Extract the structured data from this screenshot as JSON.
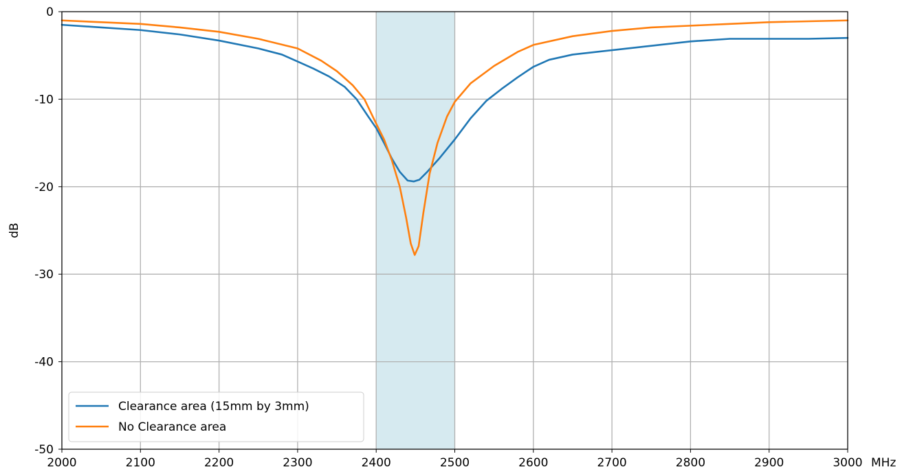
{
  "chart_data": {
    "type": "line",
    "title": "",
    "xlabel": "",
    "ylabel": "dB",
    "x_unit": "MHz",
    "xlim": [
      2000,
      3000
    ],
    "ylim": [
      -50,
      0
    ],
    "x_ticks": [
      2000,
      2100,
      2200,
      2300,
      2400,
      2500,
      2600,
      2700,
      2800,
      2900,
      3000
    ],
    "y_ticks": [
      0,
      -10,
      -20,
      -30,
      -40,
      -50
    ],
    "x_tick_labels": [
      "2000",
      "2100",
      "2200",
      "2300",
      "2400",
      "2500",
      "2600",
      "2700",
      "2800",
      "2900",
      "3000"
    ],
    "y_tick_labels": [
      "0",
      "-10",
      "-20",
      "-30",
      "-40",
      "-50"
    ],
    "grid": true,
    "legend_position": "bottom-left",
    "highlight_band": {
      "x_start": 2400,
      "x_end": 2500,
      "color": "#d6eaf0"
    },
    "series": [
      {
        "name": "Clearance area (15mm by 3mm)",
        "color": "#1f77b4",
        "points": [
          [
            2000,
            -1.5
          ],
          [
            2050,
            -1.8
          ],
          [
            2100,
            -2.1
          ],
          [
            2150,
            -2.6
          ],
          [
            2200,
            -3.3
          ],
          [
            2250,
            -4.2
          ],
          [
            2280,
            -4.9
          ],
          [
            2300,
            -5.7
          ],
          [
            2320,
            -6.5
          ],
          [
            2340,
            -7.4
          ],
          [
            2360,
            -8.6
          ],
          [
            2375,
            -10.0
          ],
          [
            2390,
            -12.0
          ],
          [
            2400,
            -13.3
          ],
          [
            2410,
            -15.0
          ],
          [
            2420,
            -16.8
          ],
          [
            2430,
            -18.3
          ],
          [
            2440,
            -19.3
          ],
          [
            2448,
            -19.4
          ],
          [
            2455,
            -19.2
          ],
          [
            2465,
            -18.3
          ],
          [
            2480,
            -16.8
          ],
          [
            2500,
            -14.6
          ],
          [
            2520,
            -12.2
          ],
          [
            2540,
            -10.2
          ],
          [
            2560,
            -8.8
          ],
          [
            2580,
            -7.5
          ],
          [
            2600,
            -6.3
          ],
          [
            2620,
            -5.5
          ],
          [
            2650,
            -4.9
          ],
          [
            2700,
            -4.4
          ],
          [
            2750,
            -3.9
          ],
          [
            2800,
            -3.4
          ],
          [
            2850,
            -3.1
          ],
          [
            2900,
            -3.1
          ],
          [
            2950,
            -3.1
          ],
          [
            3000,
            -3.0
          ]
        ]
      },
      {
        "name": "No Clearance area",
        "color": "#ff7f0e",
        "points": [
          [
            2000,
            -1.0
          ],
          [
            2050,
            -1.2
          ],
          [
            2100,
            -1.4
          ],
          [
            2150,
            -1.8
          ],
          [
            2200,
            -2.3
          ],
          [
            2250,
            -3.1
          ],
          [
            2300,
            -4.2
          ],
          [
            2330,
            -5.6
          ],
          [
            2350,
            -6.8
          ],
          [
            2370,
            -8.4
          ],
          [
            2385,
            -10.0
          ],
          [
            2400,
            -12.8
          ],
          [
            2410,
            -14.6
          ],
          [
            2420,
            -17.0
          ],
          [
            2430,
            -20.0
          ],
          [
            2438,
            -23.5
          ],
          [
            2444,
            -26.5
          ],
          [
            2449,
            -27.8
          ],
          [
            2454,
            -26.8
          ],
          [
            2460,
            -23.0
          ],
          [
            2468,
            -18.5
          ],
          [
            2478,
            -15.0
          ],
          [
            2490,
            -12.0
          ],
          [
            2500,
            -10.3
          ],
          [
            2520,
            -8.2
          ],
          [
            2550,
            -6.2
          ],
          [
            2580,
            -4.6
          ],
          [
            2600,
            -3.8
          ],
          [
            2650,
            -2.8
          ],
          [
            2700,
            -2.2
          ],
          [
            2750,
            -1.8
          ],
          [
            2800,
            -1.6
          ],
          [
            2850,
            -1.4
          ],
          [
            2900,
            -1.2
          ],
          [
            2950,
            -1.1
          ],
          [
            3000,
            -1.0
          ]
        ]
      }
    ]
  }
}
